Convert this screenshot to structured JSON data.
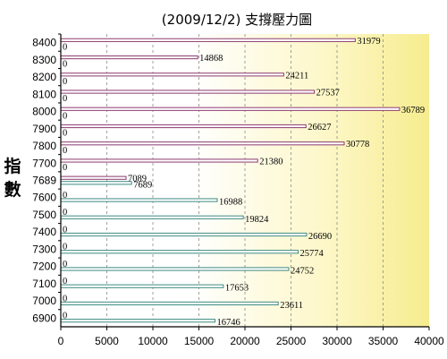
{
  "chart_data": {
    "type": "bar",
    "orientation": "horizontal",
    "title": "(2009/12/2)  支撐壓力圖",
    "ylabel": "指數",
    "xlabel": "",
    "xlim": [
      0,
      40000
    ],
    "xticks": [
      0,
      5000,
      10000,
      15000,
      20000,
      25000,
      30000,
      35000,
      40000
    ],
    "grid": "vertical-dashed",
    "categories": [
      "8400",
      "8300",
      "8200",
      "8100",
      "8000",
      "7900",
      "7800",
      "7700",
      "7689",
      "7600",
      "7500",
      "7400",
      "7300",
      "7200",
      "7100",
      "7000",
      "6900"
    ],
    "series": [
      {
        "color": "#8c3a70",
        "values": [
          31979,
          14868,
          24211,
          27537,
          36789,
          26627,
          30778,
          21380,
          7089,
          0,
          0,
          0,
          0,
          0,
          0,
          0,
          0
        ]
      },
      {
        "color": "#3c8a82",
        "values": [
          0,
          0,
          0,
          0,
          0,
          0,
          0,
          0,
          7689,
          16988,
          19824,
          26690,
          25774,
          24752,
          17653,
          23611,
          16746
        ]
      }
    ],
    "value_labels": [
      [
        "31979",
        "0"
      ],
      [
        "14868",
        "0"
      ],
      [
        "24211",
        "0"
      ],
      [
        "27537",
        "0"
      ],
      [
        "36789",
        "0"
      ],
      [
        "26627",
        "0"
      ],
      [
        "30778",
        "0"
      ],
      [
        "21380",
        "0"
      ],
      [
        "7089",
        "7689"
      ],
      [
        "0",
        "16988"
      ],
      [
        "0",
        "19824"
      ],
      [
        "0",
        "26690"
      ],
      [
        "0",
        "25774"
      ],
      [
        "0",
        "24752"
      ],
      [
        "0",
        "17653"
      ],
      [
        "0",
        "23611"
      ],
      [
        "0",
        "16746"
      ]
    ]
  }
}
